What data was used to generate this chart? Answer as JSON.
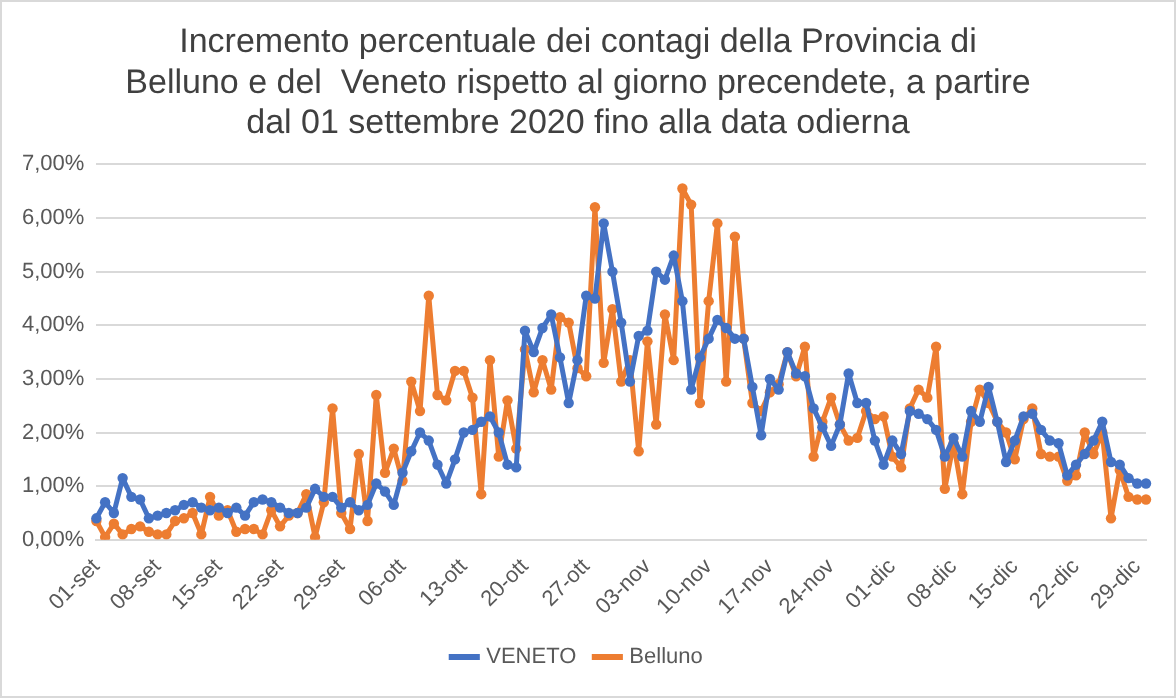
{
  "chart_data": {
    "type": "line",
    "title": "Incremento percentuale dei contagi della Provincia di\nBelluno e del  Veneto rispetto al giorno precendete, a partire\ndal 01 settembre 2020 fino alla data odierna",
    "categories": [
      "01-set",
      null,
      null,
      null,
      null,
      null,
      null,
      "08-set",
      null,
      null,
      null,
      null,
      null,
      null,
      "15-set",
      null,
      null,
      null,
      null,
      null,
      null,
      "22-set",
      null,
      null,
      null,
      null,
      null,
      null,
      "29-set",
      null,
      null,
      null,
      null,
      null,
      null,
      "06-ott",
      null,
      null,
      null,
      null,
      null,
      null,
      "13-ott",
      null,
      null,
      null,
      null,
      null,
      null,
      "20-ott",
      null,
      null,
      null,
      null,
      null,
      null,
      "27-ott",
      null,
      null,
      null,
      null,
      null,
      null,
      "03-nov",
      null,
      null,
      null,
      null,
      null,
      null,
      "10-nov",
      null,
      null,
      null,
      null,
      null,
      null,
      "17-nov",
      null,
      null,
      null,
      null,
      null,
      null,
      "24-nov",
      null,
      null,
      null,
      null,
      null,
      null,
      "01-dic",
      null,
      null,
      null,
      null,
      null,
      null,
      "08-dic",
      null,
      null,
      null,
      null,
      null,
      null,
      "15-dic",
      null,
      null,
      null,
      null,
      null,
      null,
      "22-dic",
      null,
      null,
      null,
      null,
      null,
      null,
      "29-dic",
      null
    ],
    "series": [
      {
        "name": "VENETO",
        "color": "#4472c4",
        "values": [
          0.4,
          0.7,
          0.5,
          1.15,
          0.8,
          0.75,
          0.4,
          0.45,
          0.5,
          0.55,
          0.65,
          0.7,
          0.6,
          0.55,
          0.6,
          0.5,
          0.6,
          0.45,
          0.7,
          0.75,
          0.7,
          0.6,
          0.5,
          0.5,
          0.6,
          0.95,
          0.8,
          0.8,
          0.6,
          0.7,
          0.55,
          0.65,
          1.05,
          0.9,
          0.65,
          1.25,
          1.65,
          2.0,
          1.85,
          1.4,
          1.05,
          1.5,
          2.0,
          2.05,
          2.2,
          2.3,
          2.0,
          1.4,
          1.35,
          3.9,
          3.5,
          3.95,
          4.2,
          3.4,
          2.55,
          3.35,
          4.55,
          4.5,
          5.9,
          5.0,
          4.05,
          2.95,
          3.8,
          3.9,
          5.0,
          4.85,
          5.3,
          4.45,
          2.8,
          3.4,
          3.75,
          4.1,
          3.95,
          3.75,
          3.75,
          2.85,
          1.95,
          3.0,
          2.8,
          3.5,
          3.1,
          3.05,
          2.45,
          2.1,
          1.75,
          2.15,
          3.1,
          2.55,
          2.55,
          1.85,
          1.4,
          1.85,
          1.6,
          2.4,
          2.35,
          2.25,
          2.05,
          1.55,
          1.9,
          1.55,
          2.4,
          2.2,
          2.85,
          2.2,
          1.45,
          1.85,
          2.3,
          2.35,
          2.05,
          1.85,
          1.8,
          1.2,
          1.4,
          1.6,
          1.85,
          2.2,
          1.45,
          1.4,
          1.15,
          1.05,
          1.05
        ]
      },
      {
        "name": "Belluno",
        "color": "#ed7d31",
        "values": [
          0.35,
          0.05,
          0.3,
          0.1,
          0.2,
          0.25,
          0.15,
          0.1,
          0.1,
          0.35,
          0.4,
          0.5,
          0.1,
          0.8,
          0.45,
          0.55,
          0.15,
          0.2,
          0.2,
          0.1,
          0.55,
          0.25,
          0.45,
          0.5,
          0.85,
          0.05,
          0.7,
          2.45,
          0.5,
          0.2,
          1.6,
          0.35,
          2.7,
          1.25,
          1.7,
          1.1,
          2.95,
          2.4,
          4.55,
          2.7,
          2.6,
          3.15,
          3.15,
          2.65,
          0.85,
          3.35,
          1.55,
          2.6,
          1.7,
          3.55,
          2.75,
          3.35,
          2.8,
          4.15,
          4.05,
          3.2,
          3.05,
          6.2,
          3.3,
          4.3,
          2.95,
          3.35,
          1.65,
          3.7,
          2.15,
          4.2,
          3.35,
          6.55,
          6.25,
          2.55,
          4.45,
          5.9,
          2.95,
          5.65,
          3.75,
          2.55,
          2.4,
          2.75,
          2.9,
          3.5,
          3.05,
          3.6,
          1.55,
          2.2,
          2.65,
          2.15,
          1.85,
          1.9,
          2.4,
          2.25,
          2.3,
          1.55,
          1.35,
          2.45,
          2.8,
          2.65,
          3.6,
          0.95,
          1.8,
          0.85,
          2.2,
          2.8,
          2.55,
          2.2,
          2.0,
          1.5,
          2.25,
          2.45,
          1.6,
          1.55,
          1.55,
          1.1,
          1.2,
          2.0,
          1.6,
          2.0,
          0.4,
          1.3,
          0.8,
          0.75,
          0.75
        ]
      }
    ],
    "ylim": [
      0,
      7
    ],
    "yticks": [
      {
        "value": 0,
        "label": "0,00%"
      },
      {
        "value": 1,
        "label": "1,00%"
      },
      {
        "value": 2,
        "label": "2,00%"
      },
      {
        "value": 3,
        "label": "3,00%"
      },
      {
        "value": 4,
        "label": "4,00%"
      },
      {
        "value": 5,
        "label": "5,00%"
      },
      {
        "value": 6,
        "label": "6,00%"
      },
      {
        "value": 7,
        "label": "7,00%"
      }
    ],
    "grid": "y",
    "legend": "bottom",
    "marker": "circle",
    "line_style": "solid"
  }
}
